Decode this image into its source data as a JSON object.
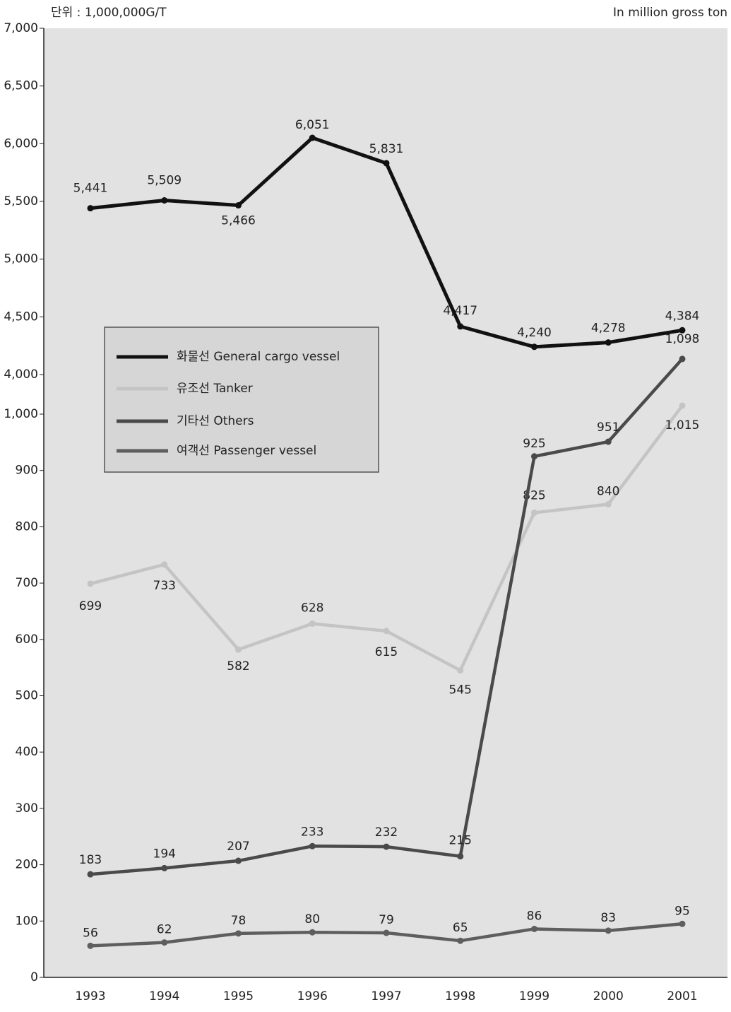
{
  "chart_data": {
    "type": "line",
    "unit_label": "단위 : 1,000,000G/T",
    "unit_label_en": "In million gross ton",
    "categories": [
      "1993",
      "1994",
      "1995",
      "1996",
      "1997",
      "1998",
      "1999",
      "2000",
      "2001"
    ],
    "series": [
      {
        "name": "화물선 General cargo vessel",
        "color": "#111111",
        "axis": "y2",
        "values": [
          5441,
          5509,
          5466,
          6051,
          5831,
          4417,
          4240,
          4278,
          4384
        ],
        "value_labels": [
          "5,441",
          "5,509",
          "5,466",
          "6,051",
          "5,831",
          "4,417",
          "4,240",
          "4,278",
          "4,384"
        ]
      },
      {
        "name": "유조선 Tanker",
        "color": "#c4c4c4",
        "values": [
          699,
          733,
          582,
          628,
          615,
          545,
          825,
          840,
          1015
        ],
        "value_labels": [
          "699",
          "733",
          "582",
          "628",
          "615",
          "545",
          "825",
          "840",
          "1,015"
        ]
      },
      {
        "name": "기타선 Others",
        "color": "#4a4a4a",
        "values": [
          183,
          194,
          207,
          233,
          232,
          215,
          925,
          951,
          1098
        ],
        "value_labels": [
          "183",
          "194",
          "207",
          "233",
          "232",
          "215",
          "925",
          "951",
          "1,098"
        ]
      },
      {
        "name": "여객선 Passenger vessel",
        "color": "#5e5e5e",
        "values": [
          56,
          62,
          78,
          80,
          79,
          65,
          86,
          83,
          95
        ]
      }
    ],
    "ylim": [
      0,
      1000
    ],
    "yticks": [
      0,
      100,
      200,
      300,
      400,
      500,
      600,
      700,
      800,
      900,
      {
        "value": 1000,
        "label": "1,000"
      }
    ],
    "y2lim": [
      4000,
      7000
    ],
    "y2ticks": [
      {
        "value": 4000,
        "label": "4,000"
      },
      {
        "value": 4500,
        "label": "4,500"
      },
      {
        "value": 5000,
        "label": "5,000"
      },
      {
        "value": 5500,
        "label": "5,500"
      },
      {
        "value": 6000,
        "label": "6,000"
      },
      {
        "value": 6500,
        "label": "6,500"
      },
      {
        "value": 7000,
        "label": "7,000"
      }
    ],
    "legend": "upper left"
  }
}
